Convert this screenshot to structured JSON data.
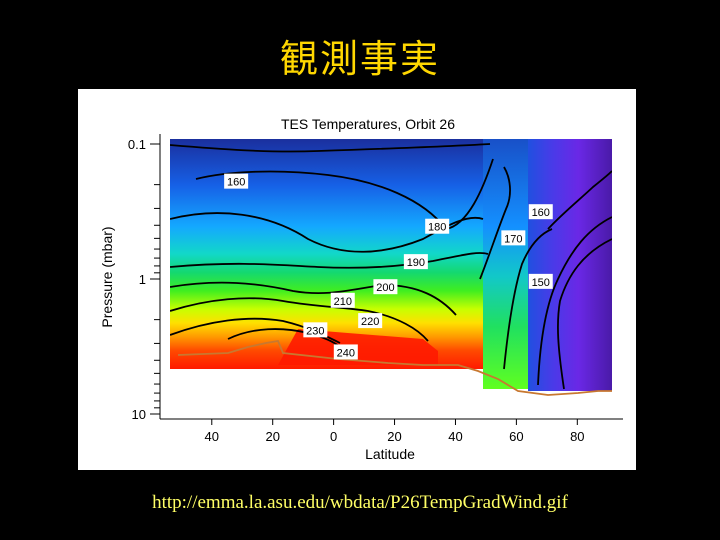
{
  "slide": {
    "title": "観測事実",
    "source_url": "http://emma.la.asu.edu/wbdata/P26TempGradWind.gif"
  },
  "chart_data": {
    "type": "heatmap",
    "title": "TES Temperatures, Orbit 26",
    "xlabel": "Latitude",
    "ylabel": "Pressure (mbar)",
    "x_ticks": [
      {
        "value": -40,
        "label": "40"
      },
      {
        "value": -20,
        "label": "20"
      },
      {
        "value": 0,
        "label": "0"
      },
      {
        "value": 20,
        "label": "20"
      },
      {
        "value": 40,
        "label": "40"
      },
      {
        "value": 60,
        "label": "60"
      },
      {
        "value": 80,
        "label": "80"
      }
    ],
    "y_ticks": [
      {
        "value": 0.1,
        "label": "0.1"
      },
      {
        "value": 1,
        "label": "1"
      },
      {
        "value": 10,
        "label": "10"
      }
    ],
    "xlim": [
      -57,
      95
    ],
    "ylim": [
      10,
      0.1
    ],
    "y_scale": "log",
    "colormap": [
      "#1a2f9e",
      "#1478ff",
      "#12c8ee",
      "#14d878",
      "#28e628",
      "#a0ff00",
      "#ffff00",
      "#ffb400",
      "#ff6a00",
      "#ff1a00",
      "#6a28e6",
      "#4a1aa8"
    ],
    "contour_color": "#000000",
    "surface_color": "#c87830",
    "contours": [
      {
        "label": "160",
        "label_at": [
          -32,
          0.19
        ]
      },
      {
        "label": "180",
        "label_at": [
          34,
          0.41
        ]
      },
      {
        "label": "190",
        "label_at": [
          27,
          0.75
        ]
      },
      {
        "label": "200",
        "label_at": [
          17,
          1.15
        ]
      },
      {
        "label": "210",
        "label_at": [
          3,
          1.45
        ]
      },
      {
        "label": "220",
        "label_at": [
          12,
          2.05
        ]
      },
      {
        "label": "230",
        "label_at": [
          -6,
          2.4
        ]
      },
      {
        "label": "240",
        "label_at": [
          4,
          3.5
        ]
      },
      {
        "label": "170",
        "label_at": [
          59,
          0.5
        ]
      },
      {
        "label": "160",
        "label_at": [
          68,
          0.32
        ]
      },
      {
        "label": "150",
        "label_at": [
          68,
          1.05
        ]
      }
    ]
  }
}
